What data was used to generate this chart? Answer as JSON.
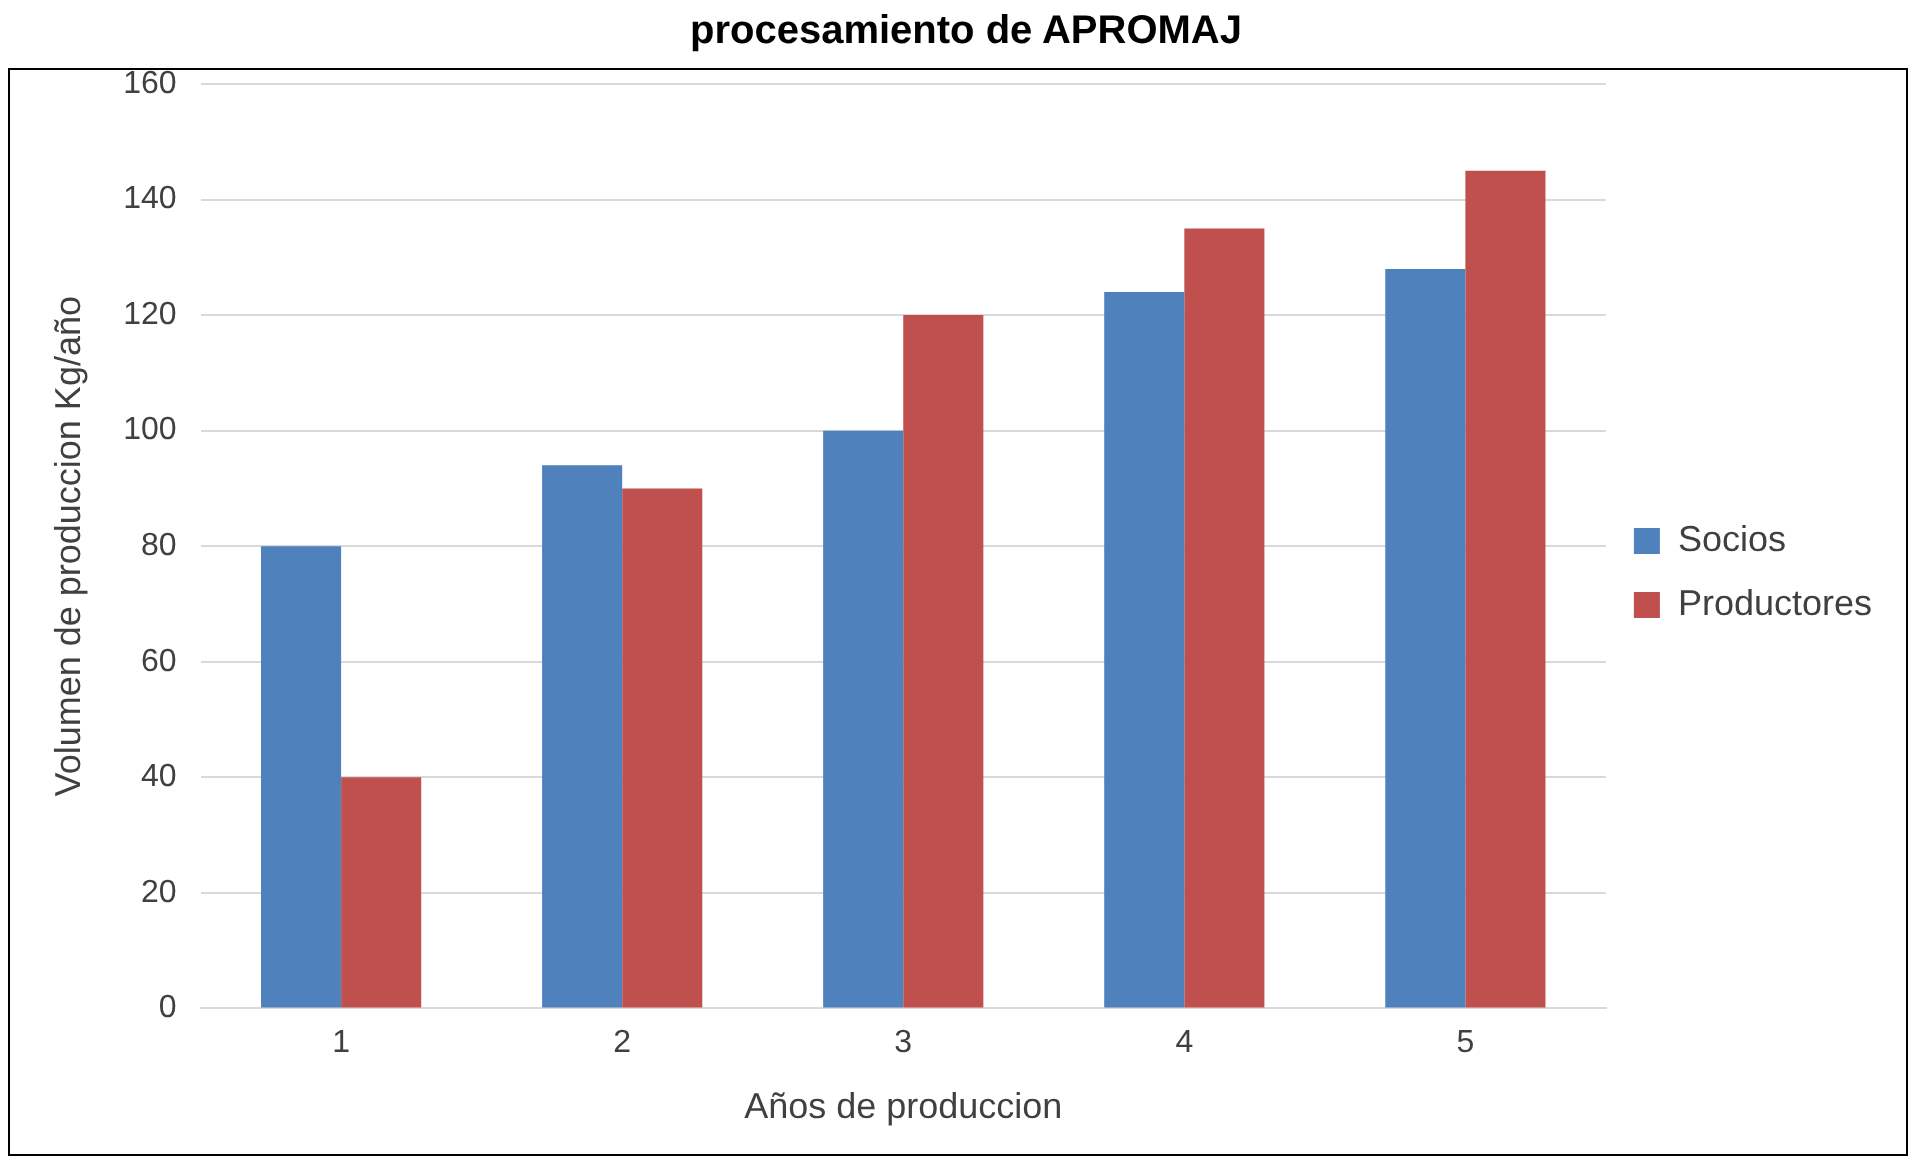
{
  "chart_data": {
    "type": "bar",
    "title": "procesamiento de APROMAJ",
    "xlabel": "Años de produccion",
    "ylabel": "Volumen de produccion Kg/año",
    "categories": [
      "1",
      "2",
      "3",
      "4",
      "5"
    ],
    "series": [
      {
        "name": "Socios",
        "color": "#4f81bd",
        "values": [
          80,
          94,
          100,
          124,
          128
        ]
      },
      {
        "name": "Productores",
        "color": "#c0504d",
        "values": [
          40,
          90,
          120,
          135,
          145
        ]
      }
    ],
    "ylim": [
      0,
      160
    ],
    "yticks": [
      0,
      20,
      40,
      60,
      80,
      100,
      120,
      140,
      160
    ],
    "grid": "y",
    "legend": "right"
  }
}
